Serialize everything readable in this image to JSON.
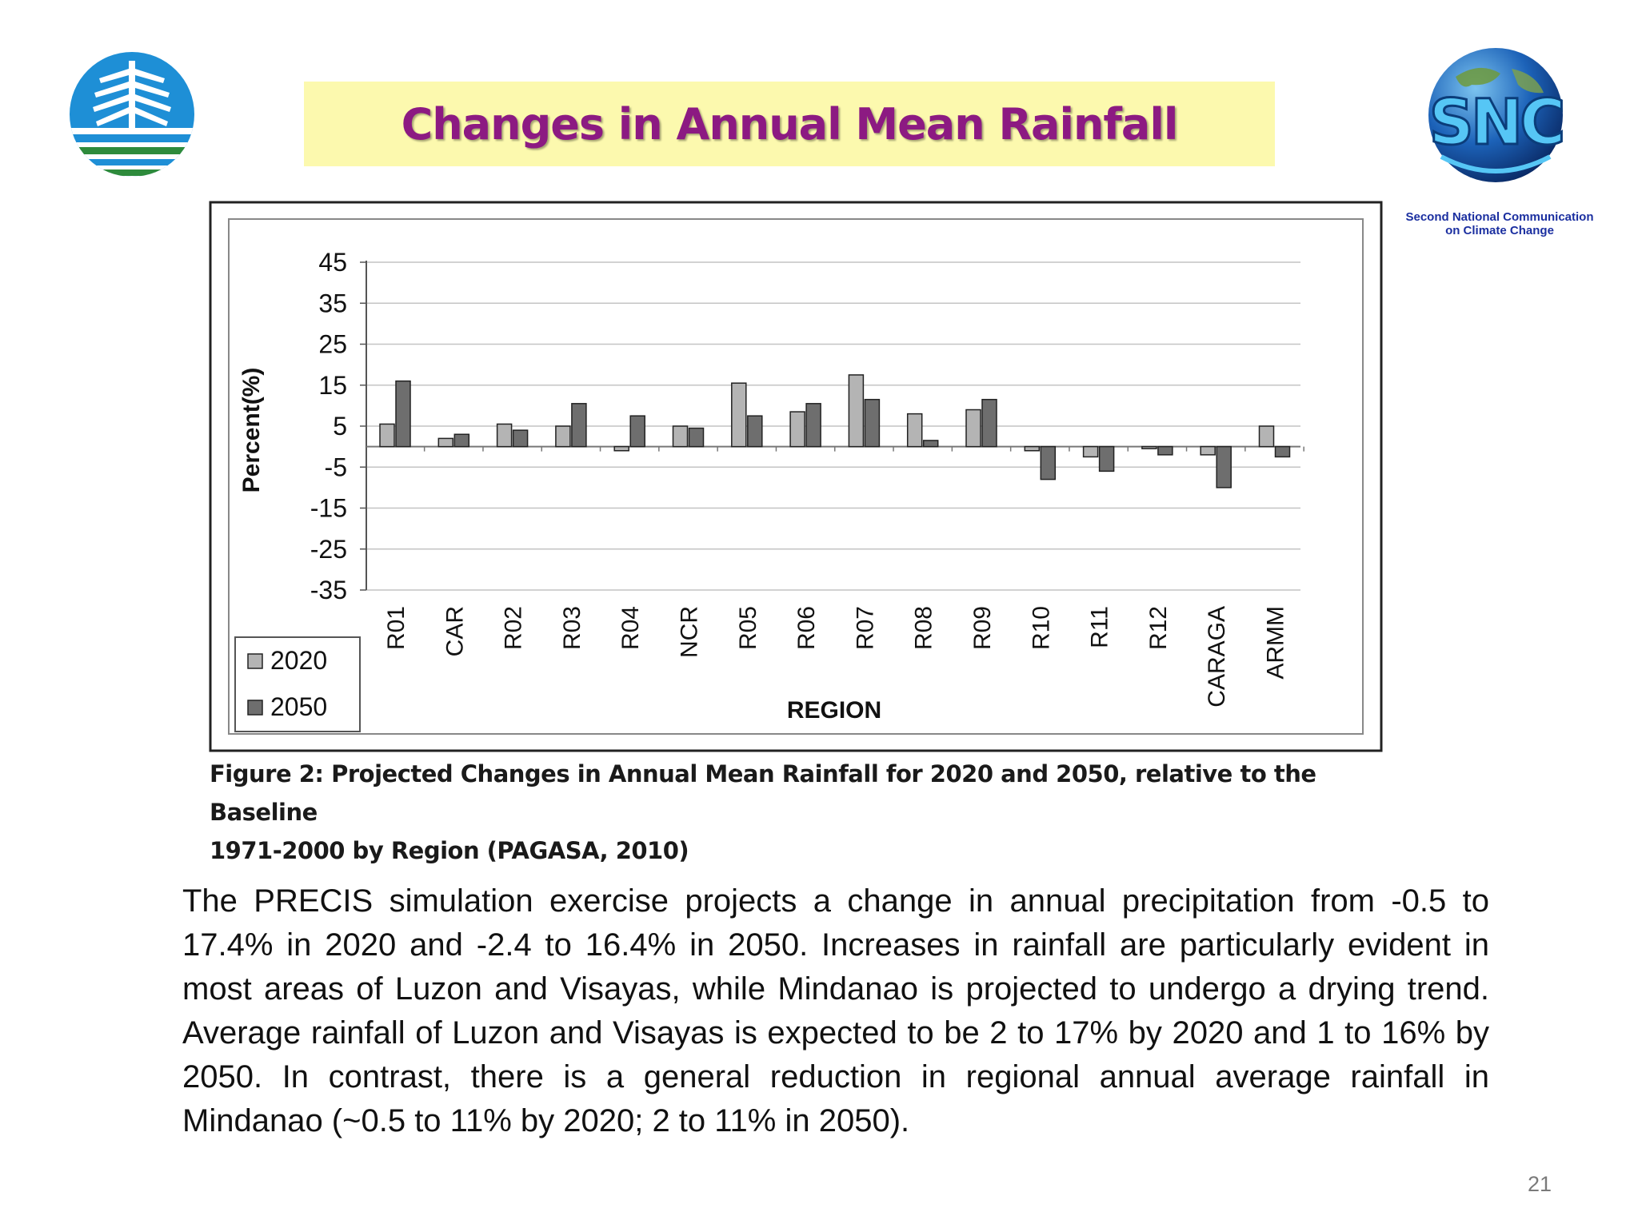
{
  "slide": {
    "title": "Changes in Annual Mean Rainfall",
    "title_color": "#8c1a82",
    "title_background": "#fcf9ae",
    "page_number": "21"
  },
  "snc_logo": {
    "letters": "SNC",
    "caption_line1": "Second National Communication",
    "caption_line2": "on Climate Change"
  },
  "figure_caption": {
    "label": "Figure 2:",
    "line1": "Projected Changes in Annual Mean Rainfall for 2020 and 2050, relative to the Baseline",
    "line2": "1971-2000 by Region (PAGASA, 2010)"
  },
  "body_text": "The PRECIS simulation exercise projects a change in annual precipitation from -0.5 to 17.4% in 2020 and -2.4 to 16.4% in 2050. Increases in rainfall are particularly evident in most areas of Luzon and Visayas, while Mindanao is projected to undergo a drying trend. Average rainfall of Luzon and Visayas is expected to be 2 to 17% by 2020 and 1 to 16% by 2050. In contrast, there is a general reduction in regional annual average rainfall in Mindanao (~0.5 to 11% by 2020; 2 to 11% in 2050).",
  "chart_data": {
    "type": "bar",
    "title": "",
    "xlabel": "REGION",
    "ylabel": "Percent(%)",
    "ylim": [
      -35,
      45
    ],
    "yticks": [
      45,
      35,
      25,
      15,
      5,
      -5,
      -15,
      -25,
      -35
    ],
    "grid": true,
    "legend_position": "bottom-left",
    "categories": [
      "R01",
      "CAR",
      "R02",
      "R03",
      "R04",
      "NCR",
      "R05",
      "R06",
      "R07",
      "R08",
      "R09",
      "R10",
      "R11",
      "R12",
      "CARAGA",
      "ARMM"
    ],
    "series": [
      {
        "name": "2020",
        "color": "#b4b4b4",
        "values": [
          5.5,
          2,
          5.5,
          5,
          -1,
          5,
          15.5,
          8.5,
          17.5,
          8,
          9,
          -1,
          -2.5,
          -0.5,
          -2,
          5
        ]
      },
      {
        "name": "2050",
        "color": "#6e6e6e",
        "values": [
          16,
          3,
          4,
          10.5,
          7.5,
          4.5,
          7.5,
          10.5,
          11.5,
          1.5,
          11.5,
          -8,
          -6,
          -2,
          -10,
          -2.5
        ]
      }
    ]
  }
}
